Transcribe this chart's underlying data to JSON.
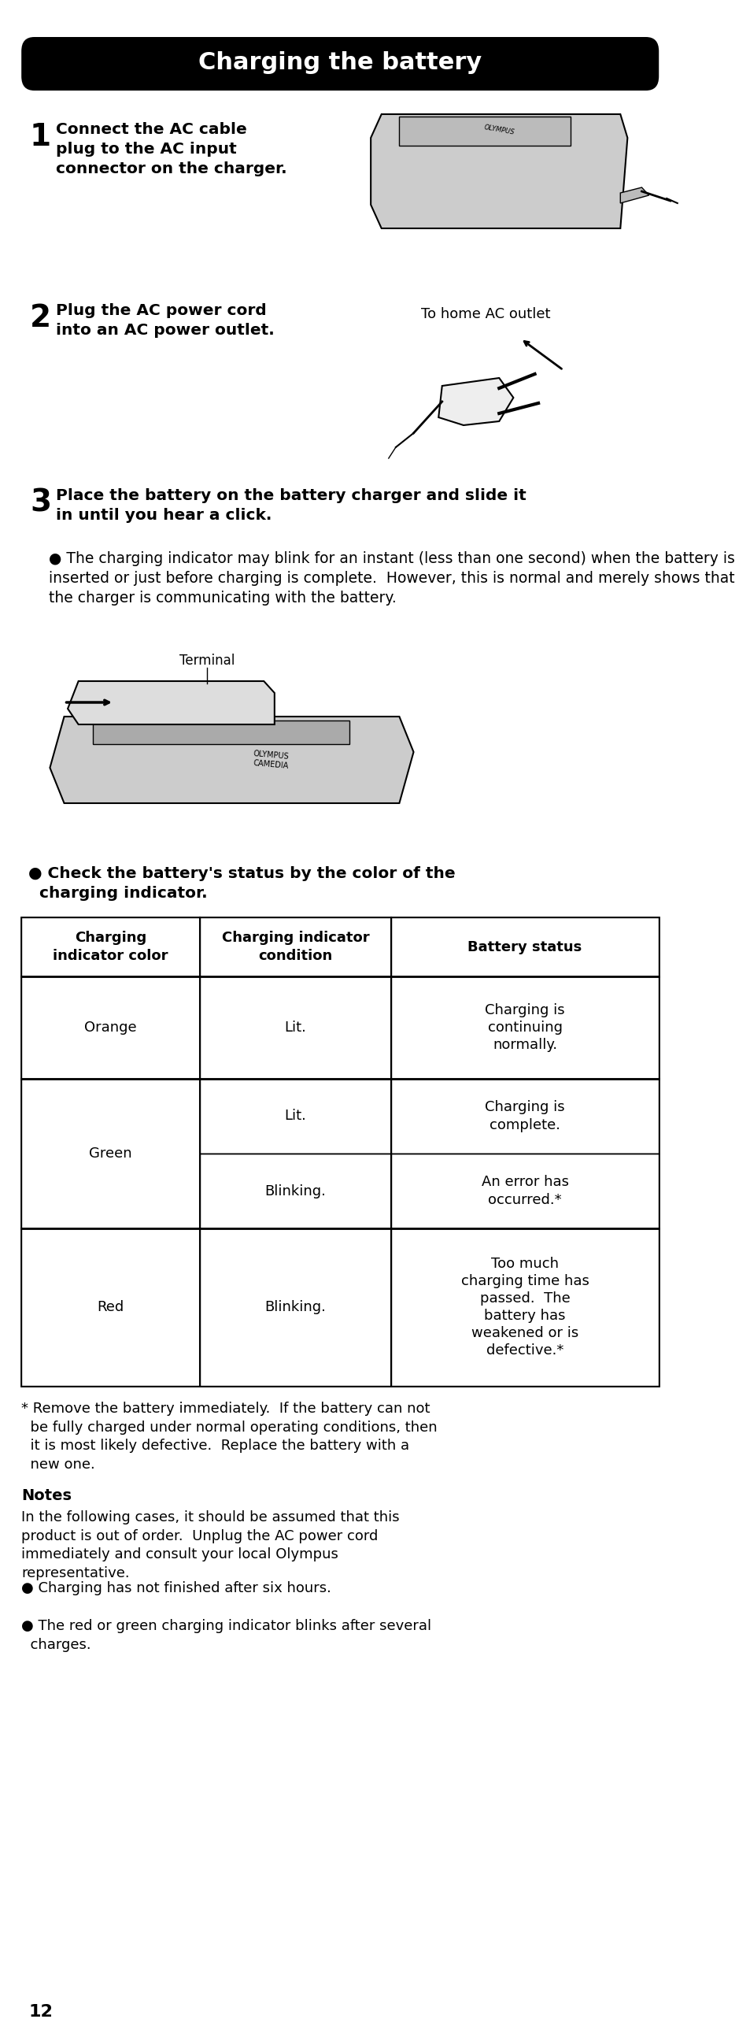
{
  "title": "Charging the battery",
  "bg_color": "#ffffff",
  "title_bg": "#000000",
  "title_color": "#ffffff",
  "step1_number": "1",
  "step1_text": "Connect the AC cable\nplug to the AC input\nconnector on the charger.",
  "step2_number": "2",
  "step2_text": "Plug the AC power cord\ninto an AC power outlet.",
  "step2_label": "To home AC outlet",
  "step3_number": "3",
  "step3_text": "Place the battery on the battery charger and slide it\nin until you hear a click.",
  "step3_bullet": "The charging indicator may blink for an instant (less than one second) when the battery is inserted or just before charging is complete.  However, this is normal and merely shows that the charger is communicating with the battery.",
  "terminal_label": "Terminal",
  "bullet_label": "● Check the battery's status by the color of the\n  charging indicator.",
  "table_headers": [
    "Charging\nindicator color",
    "Charging indicator\ncondition",
    "Battery status"
  ],
  "table_rows": [
    [
      "Orange",
      "Lit.",
      "Charging is\ncontinuing\nnormally."
    ],
    [
      "Green\n\n\nGreen",
      "Lit.\n\nBlinking.",
      "Charging is\ncomplete.\n\nAn error has\noccurred.*"
    ],
    [
      "Red",
      "Blinking.",
      "Too much\ncharging time has\npassed.  The\nbattery has\nweakened or is\ndefective.*"
    ]
  ],
  "footnote": "* Remove the battery immediately.  If the battery can not\n  be fully charged under normal operating conditions, then\n  it is most likely defective.  Replace the battery with a\n  new one.",
  "notes_title": "Notes",
  "notes_text": "In the following cases, it should be assumed that this\nproduct is out of order.  Unplug the AC power cord\nimmediately and consult your local Olympus\nrepresentative.",
  "notes_bullets": [
    "Charging has not finished after six hours.",
    "The red or green charging indicator blinks after several\n  charges."
  ],
  "page_number": "12"
}
